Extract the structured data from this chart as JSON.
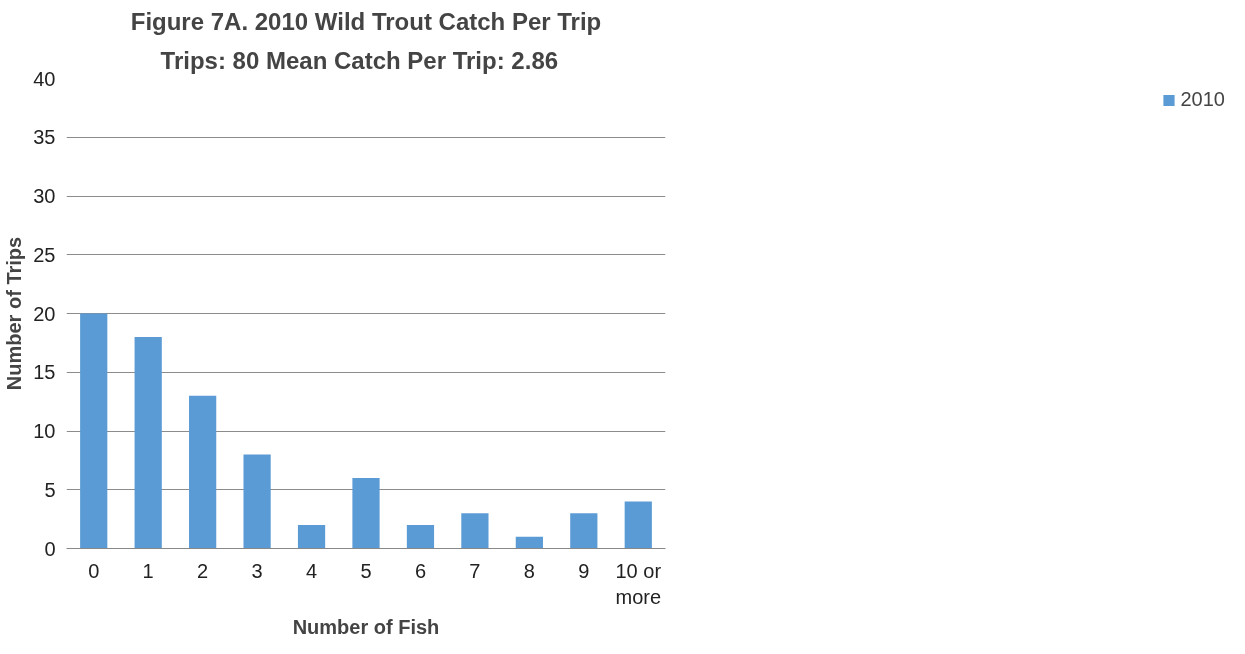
{
  "chart_data": {
    "type": "bar",
    "title": "Figure 7A. 2010 Wild Trout Catch Per Trip",
    "subtitle": "Trips: 80   Mean Catch Per Trip: 2.86",
    "xlabel": "Number of Fish",
    "ylabel": "Number of Trips",
    "categories": [
      "0",
      "1",
      "2",
      "3",
      "4",
      "5",
      "6",
      "7",
      "8",
      "9",
      "10 or more"
    ],
    "series": [
      {
        "name": "2010",
        "color": "#5b9bd5",
        "values": [
          20,
          18,
          13,
          8,
          2,
          6,
          2,
          3,
          1,
          3,
          4
        ]
      }
    ],
    "ylim": [
      0,
      40
    ],
    "yticks": [
      0,
      5,
      10,
      15,
      20,
      25,
      30,
      35,
      40
    ],
    "grid": "y",
    "legend": "right"
  }
}
